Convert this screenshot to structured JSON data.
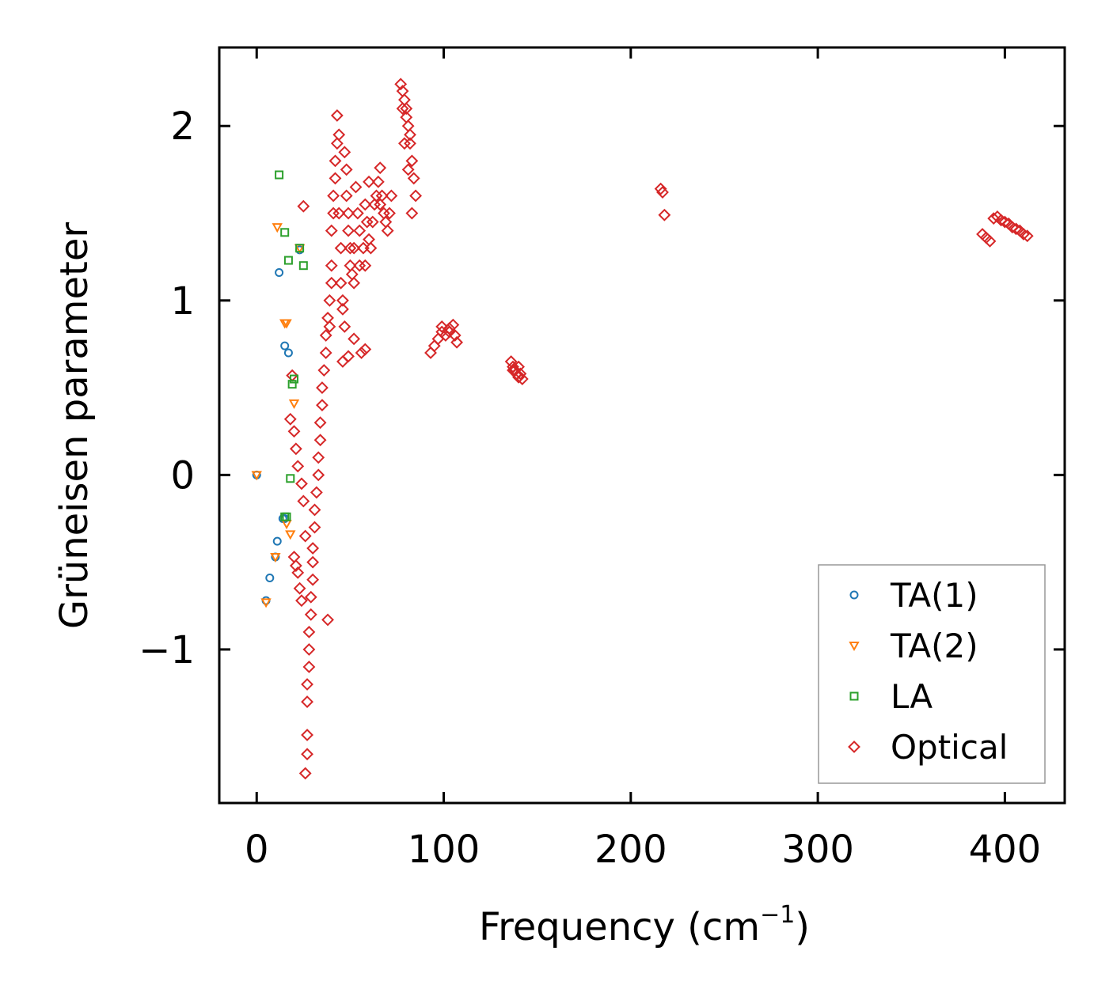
{
  "chart_data": {
    "type": "scatter",
    "title": "",
    "xlabel": "Frequency (cm",
    "xlabel_sup": "−1",
    "xlabel_close": ")",
    "ylabel": "Grüneisen parameter",
    "xlim": [
      -20,
      432
    ],
    "ylim": [
      -1.88,
      2.45
    ],
    "xticks": [
      0,
      100,
      200,
      300,
      400
    ],
    "xtick_labels": [
      "0",
      "100",
      "200",
      "300",
      "400"
    ],
    "yticks": [
      -1,
      0,
      1,
      2
    ],
    "ytick_labels": [
      "−1",
      "0",
      "1",
      "2"
    ],
    "legend_position": "lower-right",
    "series": [
      {
        "name": "TA(1)",
        "marker": "circle",
        "color": "#1f77b4",
        "x": [
          0,
          5,
          7,
          10,
          11,
          12,
          14,
          15,
          15,
          17,
          23
        ],
        "y": [
          0.0,
          -0.72,
          -0.59,
          -0.47,
          -0.38,
          1.16,
          -0.25,
          0.74,
          -0.25,
          0.7,
          1.29
        ]
      },
      {
        "name": "TA(2)",
        "marker": "triangle",
        "color": "#ff7f0e",
        "x": [
          0,
          5,
          10,
          11,
          15,
          16,
          16,
          18,
          20,
          23
        ],
        "y": [
          0.0,
          -0.73,
          -0.47,
          1.42,
          0.87,
          0.87,
          -0.28,
          -0.34,
          0.41,
          1.3
        ]
      },
      {
        "name": "LA",
        "marker": "square",
        "color": "#2ca02c",
        "x": [
          12,
          15,
          15,
          16,
          17,
          18,
          19,
          20,
          23,
          25
        ],
        "y": [
          1.72,
          1.39,
          -0.24,
          -0.24,
          1.23,
          -0.02,
          0.52,
          0.55,
          1.3,
          1.2
        ]
      },
      {
        "name": "Optical",
        "marker": "diamond",
        "color": "#d62728",
        "x": [
          26,
          27,
          27,
          27,
          27,
          28,
          28,
          28,
          29,
          29,
          30,
          30,
          30,
          31,
          31,
          32,
          33,
          33,
          34,
          34,
          35,
          35,
          36,
          37,
          37,
          38,
          39,
          39,
          40,
          40,
          40,
          41,
          41,
          42,
          42,
          43,
          43,
          44,
          44,
          45,
          45,
          46,
          46,
          47,
          47,
          48,
          48,
          49,
          49,
          50,
          50,
          51,
          52,
          52,
          53,
          54,
          55,
          55,
          56,
          57,
          58,
          58,
          59,
          60,
          61,
          62,
          63,
          64,
          65,
          66,
          67,
          68,
          69,
          70,
          71,
          72,
          25,
          19,
          18,
          20,
          21,
          22,
          24,
          25,
          20,
          21,
          22,
          23,
          24,
          26,
          38,
          46,
          49,
          52,
          58,
          66,
          60,
          77,
          78,
          79,
          80,
          80,
          81,
          82,
          82,
          83,
          84,
          85,
          78,
          79,
          81,
          83,
          93,
          95,
          97,
          99,
          101,
          103,
          105,
          106,
          107,
          99,
          103,
          136,
          137,
          138,
          139,
          140,
          141,
          142,
          137,
          140,
          216,
          217,
          218,
          388,
          390,
          392,
          394,
          396,
          398,
          400,
          402,
          404,
          406,
          408,
          410,
          412
        ],
        "y": [
          -1.71,
          -1.6,
          -1.49,
          -1.3,
          -1.2,
          -1.1,
          -1.0,
          -0.9,
          -0.8,
          -0.7,
          -0.6,
          -0.5,
          -0.42,
          -0.3,
          -0.2,
          -0.1,
          0.0,
          0.1,
          0.2,
          0.3,
          0.4,
          0.5,
          0.6,
          0.7,
          0.8,
          0.9,
          1.0,
          0.85,
          1.1,
          1.2,
          1.4,
          1.5,
          1.6,
          1.7,
          1.8,
          1.9,
          2.06,
          1.95,
          1.5,
          1.3,
          1.1,
          1.0,
          0.95,
          0.85,
          1.85,
          1.75,
          1.6,
          1.5,
          1.4,
          1.3,
          1.2,
          1.15,
          1.1,
          1.3,
          1.65,
          1.5,
          1.4,
          1.2,
          0.7,
          1.3,
          1.2,
          1.55,
          1.45,
          1.35,
          1.3,
          1.45,
          1.55,
          1.6,
          1.68,
          1.55,
          1.6,
          1.5,
          1.45,
          1.4,
          1.5,
          1.6,
          1.54,
          0.57,
          0.32,
          0.25,
          0.15,
          0.05,
          -0.05,
          -0.15,
          -0.47,
          -0.52,
          -0.56,
          -0.65,
          -0.72,
          -0.35,
          -0.83,
          0.65,
          0.68,
          0.78,
          0.72,
          1.76,
          1.68,
          2.24,
          2.2,
          2.15,
          2.1,
          2.05,
          2.0,
          1.95,
          1.9,
          1.8,
          1.7,
          1.6,
          2.1,
          1.9,
          1.75,
          1.5,
          0.7,
          0.74,
          0.78,
          0.82,
          0.8,
          0.84,
          0.86,
          0.8,
          0.76,
          0.85,
          0.82,
          0.65,
          0.62,
          0.6,
          0.58,
          0.56,
          0.58,
          0.55,
          0.6,
          0.62,
          1.64,
          1.62,
          1.49,
          1.38,
          1.36,
          1.34,
          1.47,
          1.48,
          1.46,
          1.45,
          1.44,
          1.42,
          1.41,
          1.4,
          1.38,
          1.37
        ]
      }
    ]
  }
}
